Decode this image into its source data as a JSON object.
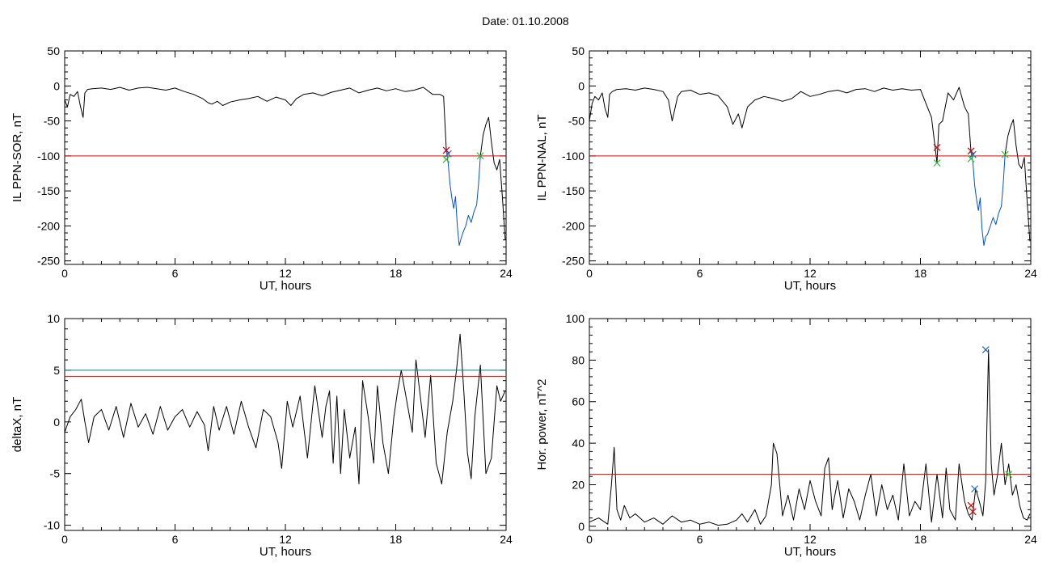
{
  "page": {
    "title": "Date:  01.10.2008"
  },
  "colors": {
    "axis": "#000000",
    "trace": "#000000",
    "threshold": "#e00000",
    "threshold_alt": "#008080",
    "substorm": "#0050e0",
    "marker_start": "#d00000",
    "marker_end": "#30c030",
    "marker_peak": "#2060c0"
  },
  "chart_data": [
    {
      "id": "sor",
      "type": "line",
      "title": "",
      "xlabel": "UT, hours",
      "ylabel": "IL PPN-SOR, nT",
      "xlim": [
        0,
        24
      ],
      "ylim": [
        -255,
        50
      ],
      "xticks": [
        "0",
        "6",
        "12",
        "18",
        "24"
      ],
      "xtick_values": [
        0,
        6,
        12,
        18,
        24
      ],
      "yticks": [
        "-250",
        "-200",
        "-150",
        "-100",
        "-50",
        "0",
        "50"
      ],
      "ytick_values": [
        -250,
        -200,
        -150,
        -100,
        -50,
        0,
        50
      ],
      "grid": false,
      "thresholds": [
        {
          "value": -100,
          "color": "red"
        }
      ],
      "series": [
        {
          "color": "black",
          "x": [
            0,
            0.15,
            0.3,
            0.5,
            0.7,
            0.85,
            1.0,
            1.1,
            1.25,
            1.5,
            2,
            2.5,
            3,
            3.5,
            4,
            4.5,
            5,
            5.5,
            6,
            6.5,
            7,
            7.5,
            7.8,
            8,
            8.3,
            8.6,
            9,
            9.5,
            10,
            10.5,
            11,
            11.5,
            12,
            12.3,
            12.6,
            13,
            13.5,
            14,
            14.5,
            15,
            15.5,
            16,
            16.5,
            17,
            17.5,
            18,
            18.5,
            19,
            19.5,
            20,
            20.4,
            20.6,
            20.75
          ],
          "y": [
            -20,
            -30,
            -12,
            -15,
            -8,
            -28,
            -45,
            -10,
            -5,
            -4,
            -3,
            -5,
            -2,
            -6,
            -3,
            -2,
            -4,
            -6,
            -3,
            -8,
            -12,
            -18,
            -24,
            -26,
            -22,
            -28,
            -23,
            -20,
            -18,
            -15,
            -22,
            -16,
            -20,
            -28,
            -18,
            -12,
            -10,
            -14,
            -9,
            -6,
            -3,
            -10,
            -6,
            -3,
            -7,
            -4,
            -8,
            -6,
            -2,
            -12,
            -12,
            -15,
            -92
          ]
        },
        {
          "color": "blue",
          "x": [
            20.75,
            20.85,
            20.95,
            21.05,
            21.15,
            21.25,
            21.35,
            21.45,
            21.55,
            21.65,
            21.8,
            21.95,
            22.1,
            22.25,
            22.4,
            22.5,
            22.6
          ],
          "y": [
            -92,
            -110,
            -140,
            -160,
            -175,
            -158,
            -200,
            -228,
            -218,
            -210,
            -200,
            -185,
            -195,
            -180,
            -170,
            -140,
            -100
          ]
        },
        {
          "color": "black",
          "x": [
            22.6,
            22.75,
            22.9,
            23.05,
            23.2,
            23.35,
            23.5,
            23.65,
            23.8,
            23.95
          ],
          "y": [
            -100,
            -70,
            -55,
            -45,
            -80,
            -110,
            -120,
            -105,
            -160,
            -220
          ]
        }
      ],
      "markers": [
        {
          "x": 20.75,
          "y": -92,
          "color": "red"
        },
        {
          "x": 20.85,
          "y": -97,
          "color": "blue"
        },
        {
          "x": 20.75,
          "y": -105,
          "color": "green"
        },
        {
          "x": 22.6,
          "y": -100,
          "color": "green"
        }
      ]
    },
    {
      "id": "nal",
      "type": "line",
      "title": "",
      "xlabel": "UT, hours",
      "ylabel": "IL PPN-NAL, nT",
      "xlim": [
        0,
        24
      ],
      "ylim": [
        -255,
        50
      ],
      "xticks": [
        "0",
        "6",
        "12",
        "18",
        "24"
      ],
      "xtick_values": [
        0,
        6,
        12,
        18,
        24
      ],
      "yticks": [
        "-250",
        "-200",
        "-150",
        "-100",
        "-50",
        "0",
        "50"
      ],
      "ytick_values": [
        -250,
        -200,
        -150,
        -100,
        -50,
        0,
        50
      ],
      "grid": false,
      "thresholds": [
        {
          "value": -100,
          "color": "red"
        }
      ],
      "series": [
        {
          "color": "black",
          "x": [
            0,
            0.15,
            0.3,
            0.5,
            0.7,
            0.85,
            1.0,
            1.1,
            1.25,
            1.5,
            2,
            2.5,
            3,
            3.5,
            4,
            4.3,
            4.5,
            4.8,
            5,
            5.5,
            6,
            6.5,
            7,
            7.5,
            7.8,
            8.1,
            8.3,
            8.6,
            9,
            9.5,
            10,
            10.5,
            11,
            11.5,
            12,
            12.5,
            13,
            13.5,
            14,
            14.5,
            15,
            15.5,
            16,
            16.5,
            17,
            17.5,
            18,
            18.3,
            18.6,
            18.8,
            18.9,
            19.0,
            19.2,
            19.5,
            19.8,
            20.1,
            20.4,
            20.6,
            20.75
          ],
          "y": [
            -50,
            -25,
            -15,
            -20,
            -10,
            -32,
            -45,
            -12,
            -8,
            -5,
            -4,
            -6,
            -3,
            -5,
            -8,
            -20,
            -50,
            -15,
            -8,
            -6,
            -12,
            -10,
            -14,
            -30,
            -55,
            -40,
            -60,
            -30,
            -20,
            -15,
            -18,
            -22,
            -18,
            -8,
            -15,
            -12,
            -8,
            -6,
            -10,
            -5,
            -4,
            -8,
            -3,
            -6,
            -4,
            -6,
            -5,
            -25,
            -45,
            -88,
            -110,
            -55,
            -50,
            -10,
            -20,
            -2,
            -30,
            -40,
            -95
          ]
        },
        {
          "color": "blue",
          "x": [
            20.75,
            20.85,
            20.95,
            21.05,
            21.15,
            21.25,
            21.35,
            21.45,
            21.55,
            21.65,
            21.8,
            21.95,
            22.1,
            22.25,
            22.4,
            22.5,
            22.6
          ],
          "y": [
            -95,
            -108,
            -142,
            -162,
            -178,
            -160,
            -205,
            -228,
            -215,
            -212,
            -200,
            -188,
            -198,
            -182,
            -172,
            -140,
            -98
          ]
        },
        {
          "color": "black",
          "x": [
            22.6,
            22.75,
            22.9,
            23.05,
            23.2,
            23.35,
            23.5,
            23.65,
            23.8,
            23.95
          ],
          "y": [
            -98,
            -72,
            -58,
            -48,
            -85,
            -112,
            -118,
            -102,
            -165,
            -222
          ]
        }
      ],
      "markers": [
        {
          "x": 18.9,
          "y": -88,
          "color": "red"
        },
        {
          "x": 18.9,
          "y": -110,
          "color": "green"
        },
        {
          "x": 20.75,
          "y": -93,
          "color": "red"
        },
        {
          "x": 20.85,
          "y": -98,
          "color": "blue"
        },
        {
          "x": 20.75,
          "y": -104,
          "color": "green"
        },
        {
          "x": 22.6,
          "y": -98,
          "color": "green"
        }
      ]
    },
    {
      "id": "deltax",
      "type": "line",
      "title": "",
      "xlabel": "UT, hours",
      "ylabel": "deltaX, nT",
      "xlim": [
        0,
        24
      ],
      "ylim": [
        -10.5,
        10
      ],
      "xticks": [
        "0",
        "6",
        "12",
        "18",
        "24"
      ],
      "xtick_values": [
        0,
        6,
        12,
        18,
        24
      ],
      "yticks": [
        "-10",
        "-5",
        "0",
        "5",
        "10"
      ],
      "ytick_values": [
        -10,
        -5,
        0,
        5,
        10
      ],
      "grid": false,
      "thresholds": [
        {
          "value": 5.0,
          "color": "teal"
        },
        {
          "value": 4.4,
          "color": "red"
        }
      ],
      "series": [
        {
          "color": "black",
          "x": [
            0,
            0.3,
            0.6,
            0.9,
            1.1,
            1.3,
            1.6,
            2.0,
            2.4,
            2.8,
            3.2,
            3.6,
            4.0,
            4.4,
            4.8,
            5.2,
            5.6,
            6.0,
            6.4,
            6.8,
            7.2,
            7.6,
            7.8,
            8.1,
            8.4,
            8.8,
            9.2,
            9.6,
            10.0,
            10.4,
            10.8,
            11.2,
            11.6,
            11.8,
            12.1,
            12.4,
            12.8,
            13.2,
            13.6,
            14.0,
            14.2,
            14.4,
            14.6,
            14.8,
            15.0,
            15.2,
            15.5,
            15.8,
            16.0,
            16.2,
            16.5,
            16.8,
            17.0,
            17.3,
            17.6,
            17.9,
            18.1,
            18.3,
            18.6,
            18.9,
            19.1,
            19.3,
            19.6,
            19.9,
            20.2,
            20.5,
            20.8,
            21.1,
            21.3,
            21.5,
            21.7,
            21.9,
            22.1,
            22.3,
            22.6,
            22.9,
            23.2,
            23.5,
            23.7,
            23.95
          ],
          "y": [
            -1,
            0.5,
            1.2,
            2.2,
            0,
            -2,
            0.5,
            1.2,
            -0.8,
            1.5,
            -1.5,
            1.8,
            -0.5,
            0.8,
            -1.2,
            1.5,
            -0.8,
            0.5,
            1.2,
            -0.5,
            1.0,
            -0.3,
            -2.8,
            1.5,
            -0.8,
            1.5,
            -1.2,
            2.0,
            -0.5,
            -2.5,
            1.2,
            0.5,
            -2.0,
            -4.5,
            2.0,
            -0.5,
            2.5,
            -3.5,
            3.5,
            -1.5,
            1.5,
            3.0,
            -4.0,
            2.5,
            -5.0,
            1.2,
            -3.5,
            -0.5,
            -6.0,
            4.0,
            0.5,
            -4.0,
            3.5,
            -2.0,
            -5.0,
            0.5,
            3.0,
            5.0,
            2.0,
            -1.0,
            6.0,
            3.0,
            -1.5,
            4.5,
            -4.0,
            -6.0,
            -1.0,
            2.0,
            5.0,
            8.5,
            3.0,
            -3.0,
            -5.5,
            0.5,
            5.5,
            -5.0,
            -3.5,
            3.5,
            2.0,
            3.0
          ]
        }
      ],
      "markers": []
    },
    {
      "id": "power",
      "type": "line",
      "title": "",
      "xlabel": "UT, hours",
      "ylabel": "Hor. power, nT^2",
      "xlim": [
        0,
        24
      ],
      "ylim": [
        -2,
        100
      ],
      "xticks": [
        "0",
        "6",
        "12",
        "18",
        "24"
      ],
      "xtick_values": [
        0,
        6,
        12,
        18,
        24
      ],
      "yticks": [
        "0",
        "20",
        "40",
        "60",
        "80",
        "100"
      ],
      "ytick_values": [
        0,
        20,
        40,
        60,
        80,
        100
      ],
      "grid": false,
      "thresholds": [
        {
          "value": 25,
          "color": "red"
        }
      ],
      "series": [
        {
          "color": "black",
          "x": [
            0,
            0.5,
            1.0,
            1.2,
            1.35,
            1.5,
            1.7,
            1.9,
            2.2,
            2.5,
            3.0,
            3.5,
            4.0,
            4.5,
            5.0,
            5.5,
            6.0,
            6.5,
            7.0,
            7.5,
            8.0,
            8.3,
            8.6,
            9.0,
            9.3,
            9.6,
            9.9,
            10.0,
            10.2,
            10.5,
            10.8,
            11.1,
            11.4,
            11.7,
            12.0,
            12.3,
            12.6,
            12.8,
            13.0,
            13.2,
            13.5,
            13.8,
            14.1,
            14.4,
            14.7,
            15.0,
            15.3,
            15.6,
            15.9,
            16.2,
            16.5,
            16.8,
            17.1,
            17.4,
            17.7,
            18.0,
            18.3,
            18.6,
            18.9,
            19.2,
            19.4,
            19.6,
            19.9,
            20.1,
            20.4,
            20.6,
            20.8,
            21.0,
            21.2,
            21.4,
            21.55,
            21.7,
            21.85,
            22.0,
            22.2,
            22.4,
            22.6,
            22.8,
            23.0,
            23.2,
            23.4,
            23.6,
            23.8,
            23.95
          ],
          "y": [
            2,
            4,
            1,
            20,
            38,
            8,
            3,
            10,
            4,
            6,
            2,
            4,
            1,
            5,
            2,
            3,
            1,
            2,
            0.5,
            1,
            3,
            6,
            2,
            8,
            1,
            5,
            20,
            40,
            35,
            5,
            15,
            3,
            18,
            8,
            22,
            12,
            5,
            28,
            33,
            8,
            22,
            4,
            18,
            12,
            3,
            15,
            25,
            5,
            20,
            8,
            15,
            3,
            30,
            5,
            12,
            8,
            30,
            2,
            25,
            4,
            28,
            8,
            3,
            30,
            12,
            6,
            3,
            18,
            12,
            5,
            22,
            85,
            30,
            15,
            25,
            40,
            20,
            30,
            15,
            20,
            10,
            4,
            3,
            6
          ]
        }
      ],
      "markers": [
        {
          "x": 20.75,
          "y": 10,
          "color": "red"
        },
        {
          "x": 20.85,
          "y": 7,
          "color": "red"
        },
        {
          "x": 20.95,
          "y": 18,
          "color": "blue"
        },
        {
          "x": 21.55,
          "y": 85,
          "color": "blue"
        },
        {
          "x": 22.8,
          "y": 25,
          "color": "green"
        }
      ]
    }
  ]
}
